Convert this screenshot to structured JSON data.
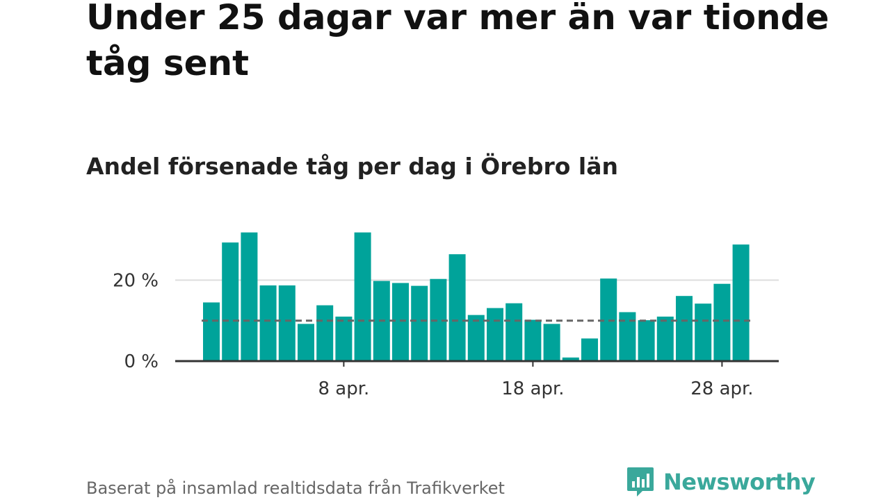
{
  "title": "Under 25 dagar var mer än var tionde tåg sent",
  "subtitle": "Andel försenade tåg per dag i Örebro län",
  "footer": {
    "source": "Baserat på insamlad realtidsdata från Trafikverket",
    "logo_text": "Newsworthy"
  },
  "colors": {
    "bar": "#00a39a",
    "reference_line": "#666666",
    "grid": "#dddddd",
    "axis": "#333333",
    "brand": "#3aa89b"
  },
  "chart_data": {
    "type": "bar",
    "x_unit": "day",
    "x": [
      "1 apr.",
      "2 apr.",
      "3 apr.",
      "4 apr.",
      "5 apr.",
      "6 apr.",
      "7 apr.",
      "8 apr.",
      "9 apr.",
      "10 apr.",
      "11 apr.",
      "12 apr.",
      "13 apr.",
      "14 apr.",
      "15 apr.",
      "16 apr.",
      "17 apr.",
      "18 apr.",
      "19 apr.",
      "20 apr.",
      "21 apr.",
      "22 apr.",
      "23 apr.",
      "24 apr.",
      "25 apr.",
      "26 apr.",
      "27 apr.",
      "28 apr.",
      "29 apr."
    ],
    "values": [
      14.5,
      29.3,
      31.8,
      18.7,
      18.7,
      9.2,
      13.8,
      11.0,
      31.8,
      19.8,
      19.3,
      18.6,
      20.3,
      26.4,
      11.4,
      13.1,
      14.3,
      10.2,
      9.2,
      0.9,
      5.6,
      20.4,
      12.1,
      10.1,
      11.0,
      16.1,
      14.2,
      19.1,
      28.8
    ],
    "reference_line": 10,
    "ylim": [
      0,
      35
    ],
    "y_ticks": [
      {
        "value": 0,
        "label": "0 %"
      },
      {
        "value": 20,
        "label": "20 %"
      }
    ],
    "x_ticks": [
      {
        "index": 7,
        "label": "8 apr."
      },
      {
        "index": 17,
        "label": "18 apr."
      },
      {
        "index": 27,
        "label": "28 apr."
      }
    ],
    "grid": true,
    "legend": "none"
  }
}
